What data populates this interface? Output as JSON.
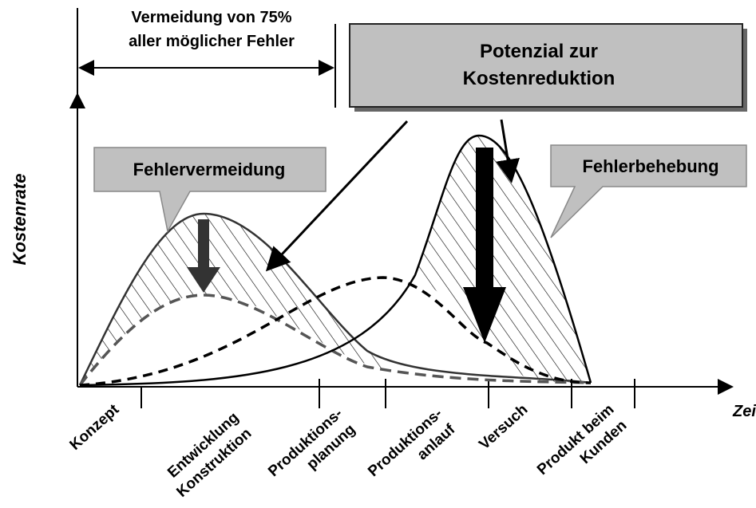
{
  "header": {
    "lines": [
      "Vermeidung von 75%",
      "aller möglicher Fehler"
    ]
  },
  "potential_box": {
    "lines": [
      "Potenzial zur",
      "Kostenreduktion"
    ]
  },
  "callouts": {
    "left": "Fehlervermeidung",
    "right": "Fehlerbehebung"
  },
  "axes": {
    "y_label": "Kostenrate",
    "x_label": "Zeit"
  },
  "phases": [
    [
      "Konzept"
    ],
    [
      "Entwicklung",
      "Konstruktion"
    ],
    [
      "Produktions-",
      "planung"
    ],
    [
      "Produktions-",
      "anlauf"
    ],
    [
      "Versuch"
    ],
    [
      "Produkt beim",
      "Kunden"
    ]
  ]
}
